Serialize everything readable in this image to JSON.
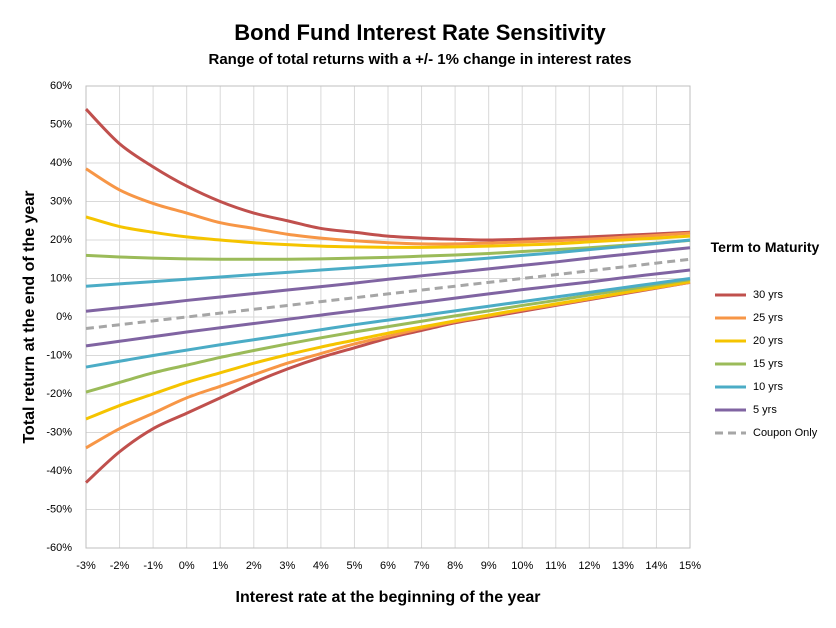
{
  "chart_data": {
    "type": "line",
    "title": "Bond Fund Interest Rate Sensitivity",
    "subtitle": "Range of total returns with a +/- 1% change in interest rates",
    "x_label": "Interest rate at the beginning of the year",
    "y_label": "Total return at the end of the year",
    "legend_title": "Term to Maturity",
    "x": [
      -3,
      -2,
      -1,
      0,
      1,
      2,
      3,
      4,
      5,
      6,
      7,
      8,
      9,
      10,
      11,
      12,
      13,
      14,
      15
    ],
    "xlim": [
      -3,
      15
    ],
    "xticks": [
      {
        "value": -3,
        "label": "-3%"
      },
      {
        "value": -2,
        "label": "-2%"
      },
      {
        "value": -1,
        "label": "-1%"
      },
      {
        "value": 0,
        "label": "0%"
      },
      {
        "value": 1,
        "label": "1%"
      },
      {
        "value": 2,
        "label": "2%"
      },
      {
        "value": 3,
        "label": "3%"
      },
      {
        "value": 4,
        "label": "4%"
      },
      {
        "value": 5,
        "label": "5%"
      },
      {
        "value": 6,
        "label": "6%"
      },
      {
        "value": 7,
        "label": "7%"
      },
      {
        "value": 8,
        "label": "8%"
      },
      {
        "value": 9,
        "label": "9%"
      },
      {
        "value": 10,
        "label": "10%"
      },
      {
        "value": 11,
        "label": "11%"
      },
      {
        "value": 12,
        "label": "12%"
      },
      {
        "value": 13,
        "label": "13%"
      },
      {
        "value": 14,
        "label": "14%"
      },
      {
        "value": 15,
        "label": "15%"
      }
    ],
    "ylim": [
      -60,
      60
    ],
    "yticks": [
      {
        "value": 60,
        "label": "60%"
      },
      {
        "value": 50,
        "label": "50%"
      },
      {
        "value": 40,
        "label": "40%"
      },
      {
        "value": 30,
        "label": "30%"
      },
      {
        "value": 20,
        "label": "20%"
      },
      {
        "value": 10,
        "label": "10%"
      },
      {
        "value": 0,
        "label": "0%"
      },
      {
        "value": -10,
        "label": "-10%"
      },
      {
        "value": -20,
        "label": "-20%"
      },
      {
        "value": -30,
        "label": "-30%"
      },
      {
        "value": -40,
        "label": "-40%"
      },
      {
        "value": -50,
        "label": "-50%"
      },
      {
        "value": -60,
        "label": "-60%"
      }
    ],
    "grid": true,
    "series": [
      {
        "name": "30 yrs",
        "color": "#c0504d",
        "high": [
          54,
          45,
          39,
          34,
          30,
          27,
          25,
          23,
          22,
          21,
          20.5,
          20.2,
          20,
          20.2,
          20.5,
          20.8,
          21.2,
          21.6,
          22
        ],
        "low": [
          -43,
          -35,
          -29,
          -25,
          -21,
          -17,
          -13.5,
          -10.5,
          -8,
          -5.5,
          -3.5,
          -1.5,
          0,
          1.5,
          3,
          4.5,
          6,
          7.5,
          9
        ]
      },
      {
        "name": "25 yrs",
        "color": "#f79646",
        "high": [
          38.5,
          33,
          29.5,
          27,
          24.5,
          23,
          21.5,
          20.5,
          19.8,
          19.3,
          19,
          19,
          19.2,
          19.5,
          19.8,
          20.2,
          20.7,
          21.2,
          21.8
        ],
        "low": [
          -34,
          -29,
          -25,
          -21,
          -18,
          -15,
          -12,
          -9.5,
          -7,
          -5,
          -3,
          -1.2,
          0.3,
          1.8,
          3.2,
          4.7,
          6.2,
          7.6,
          9
        ]
      },
      {
        "name": "20 yrs",
        "color": "#f5c400",
        "high": [
          26,
          23.5,
          22,
          20.8,
          20,
          19.3,
          18.8,
          18.4,
          18.2,
          18.1,
          18.1,
          18.2,
          18.4,
          18.7,
          19,
          19.5,
          20,
          20.5,
          21
        ],
        "low": [
          -26.5,
          -23,
          -20,
          -17,
          -14.5,
          -12,
          -9.8,
          -7.8,
          -6,
          -4.2,
          -2.6,
          -1,
          0.5,
          2,
          3.4,
          4.8,
          6.3,
          7.7,
          9.2
        ]
      },
      {
        "name": "15 yrs",
        "color": "#9bbb59",
        "high": [
          16,
          15.6,
          15.3,
          15.1,
          15,
          15,
          15,
          15.1,
          15.3,
          15.5,
          15.8,
          16.1,
          16.5,
          17,
          17.5,
          18,
          18.6,
          19.2,
          19.9
        ],
        "low": [
          -19.5,
          -17,
          -14.5,
          -12.5,
          -10.5,
          -8.7,
          -7,
          -5.4,
          -3.9,
          -2.5,
          -1.1,
          0.3,
          1.6,
          3,
          4.3,
          5.7,
          7,
          8.4,
          9.7
        ]
      },
      {
        "name": "10 yrs",
        "color": "#4bacc6",
        "high": [
          8,
          8.6,
          9.2,
          9.8,
          10.4,
          11,
          11.6,
          12.2,
          12.8,
          13.4,
          14,
          14.6,
          15.3,
          16,
          16.7,
          17.5,
          18.3,
          19.1,
          20
        ],
        "low": [
          -13,
          -11.5,
          -10,
          -8.6,
          -7.2,
          -5.9,
          -4.6,
          -3.3,
          -2,
          -0.8,
          0.4,
          1.6,
          2.8,
          4,
          5.2,
          6.4,
          7.6,
          8.8,
          10
        ]
      },
      {
        "name": "5 yrs",
        "color": "#8064a2",
        "high": [
          1.5,
          2.4,
          3.3,
          4.3,
          5.2,
          6.1,
          7,
          7.9,
          8.8,
          9.8,
          10.7,
          11.6,
          12.5,
          13.4,
          14.3,
          15.3,
          16.2,
          17.1,
          18
        ],
        "low": [
          -7.5,
          -6.3,
          -5.1,
          -3.9,
          -2.8,
          -1.7,
          -0.6,
          0.5,
          1.6,
          2.7,
          3.8,
          4.9,
          6,
          7.1,
          8.1,
          9.1,
          10.2,
          11.2,
          12.2
        ]
      },
      {
        "name": "Coupon Only",
        "color": "#a6a6a6",
        "dashed": true,
        "values": [
          -3,
          -2,
          -1,
          0,
          1,
          2,
          3,
          4,
          5,
          6,
          7,
          8,
          9,
          10,
          11,
          12,
          13,
          14,
          15
        ]
      }
    ]
  }
}
